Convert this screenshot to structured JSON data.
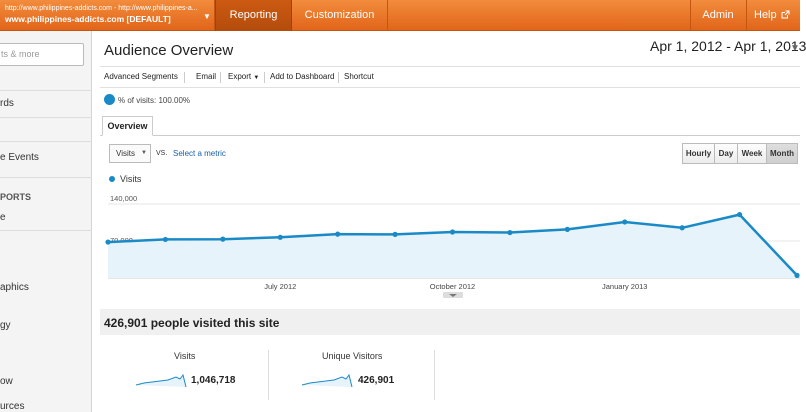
{
  "account": {
    "url": "http://www.philippines-addicts.com - http://www.philippines-a...",
    "name": "www.philippines-addicts.com [DEFAULT]"
  },
  "nav": {
    "reporting": "Reporting",
    "customization": "Customization",
    "admin": "Admin",
    "help": "Help"
  },
  "sidebar": {
    "search_placeholder": "ts & more",
    "items": [
      "rds",
      "e Events",
      "PORTS",
      "e",
      "aphics",
      "gy",
      "ow",
      "urces"
    ]
  },
  "page": {
    "title": "Audience Overview",
    "date_range": "Apr 1, 2012 - Apr 1, 2013"
  },
  "toolbar": [
    "Advanced Segments",
    "Email",
    "Export",
    "Add to Dashboard",
    "Shortcut"
  ],
  "segment": {
    "label": "% of visits: 100.00%",
    "share": 1.0
  },
  "tabs": {
    "overview": "Overview"
  },
  "metric": {
    "selected": "Visits",
    "vs": "VS.",
    "select_metric": "Select a metric"
  },
  "granularity": {
    "buttons": [
      "Hourly",
      "Day",
      "Week",
      "Month"
    ],
    "selected": "Month"
  },
  "summary": {
    "headline": "426,901 people visited this site",
    "cards": [
      {
        "label": "Visits",
        "value": "1,046,718"
      },
      {
        "label": "Unique Visitors",
        "value": "426,901"
      }
    ]
  },
  "colors": {
    "accent_orange": "#e8731f",
    "line_blue": "#1a8ac6",
    "area_fill": "#e6f3fa"
  },
  "chart_data": {
    "type": "line",
    "legend": "Visits",
    "y_ticks": [
      "140,000",
      "70,000"
    ],
    "x_tick_labels": [
      "July 2012",
      "October 2012",
      "January 2013"
    ],
    "x": [
      "Apr 2012",
      "May 2012",
      "Jun 2012",
      "Jul 2012",
      "Aug 2012",
      "Sep 2012",
      "Oct 2012",
      "Nov 2012",
      "Dec 2012",
      "Jan 2013",
      "Feb 2013",
      "Mar 2013",
      "Apr 2013"
    ],
    "values": [
      68000,
      73000,
      73500,
      77000,
      83000,
      82500,
      87000,
      86000,
      92000,
      106000,
      95000,
      120000,
      5000
    ],
    "ylim": [
      0,
      140000
    ],
    "fill": true
  }
}
